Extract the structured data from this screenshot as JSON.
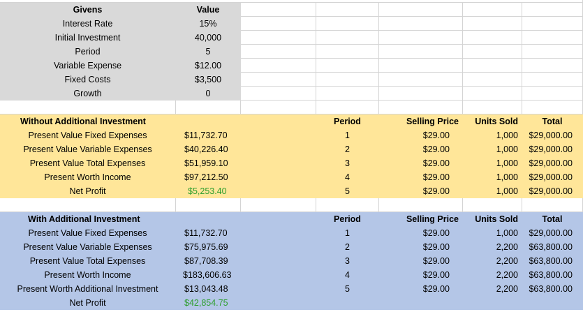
{
  "givens": {
    "headers": [
      "Givens",
      "Value"
    ],
    "rows": [
      [
        "Interest Rate",
        "15%"
      ],
      [
        "Initial Investment",
        "40,000"
      ],
      [
        "Period",
        "5"
      ],
      [
        "Variable Expense",
        "$12.00"
      ],
      [
        "Fixed Costs",
        "$3,500"
      ],
      [
        "Growth",
        "0"
      ]
    ]
  },
  "without": {
    "title": "Without Additional Investment",
    "labels": [
      [
        "Present Value Fixed Expenses",
        "$11,732.70"
      ],
      [
        "Present Value Variable Expenses",
        "$40,226.40"
      ],
      [
        "Present Value Total Expenses",
        "$51,959.10"
      ],
      [
        "Present Worth Income",
        "$97,212.50"
      ],
      [
        "Net Profit",
        "$5,253.40"
      ]
    ],
    "table_headers": [
      "Period",
      "Selling Price",
      "Units Sold",
      "Total"
    ],
    "table_rows": [
      [
        "1",
        "$29.00",
        "1,000",
        "$29,000.00"
      ],
      [
        "2",
        "$29.00",
        "1,000",
        "$29,000.00"
      ],
      [
        "3",
        "$29.00",
        "1,000",
        "$29,000.00"
      ],
      [
        "4",
        "$29.00",
        "1,000",
        "$29,000.00"
      ],
      [
        "5",
        "$29.00",
        "1,000",
        "$29,000.00"
      ]
    ]
  },
  "with": {
    "title": "With Additional Investment",
    "labels": [
      [
        "Present Value Fixed Expenses",
        "$11,732.70"
      ],
      [
        "Present Value Variable Expenses",
        "$75,975.69"
      ],
      [
        "Present Value Total Expenses",
        "$87,708.39"
      ],
      [
        "Present Worth Income",
        "$183,606.63"
      ],
      [
        "Present Worth Additional Investment",
        "$13,043.48"
      ],
      [
        "Net Profit",
        "$42,854.75"
      ]
    ],
    "table_headers": [
      "Period",
      "Selling Price",
      "Units Sold",
      "Total"
    ],
    "table_rows": [
      [
        "1",
        "$29.00",
        "1,000",
        "$29,000.00"
      ],
      [
        "2",
        "$29.00",
        "2,200",
        "$63,800.00"
      ],
      [
        "3",
        "$29.00",
        "2,200",
        "$63,800.00"
      ],
      [
        "4",
        "$29.00",
        "2,200",
        "$63,800.00"
      ],
      [
        "5",
        "$29.00",
        "2,200",
        "$63,800.00"
      ]
    ]
  },
  "colors": {
    "gray_fill": "#d9d9d9",
    "yellow_fill": "#ffe699",
    "blue_fill": "#b4c6e7",
    "profit_text": "#2e9e2e"
  }
}
